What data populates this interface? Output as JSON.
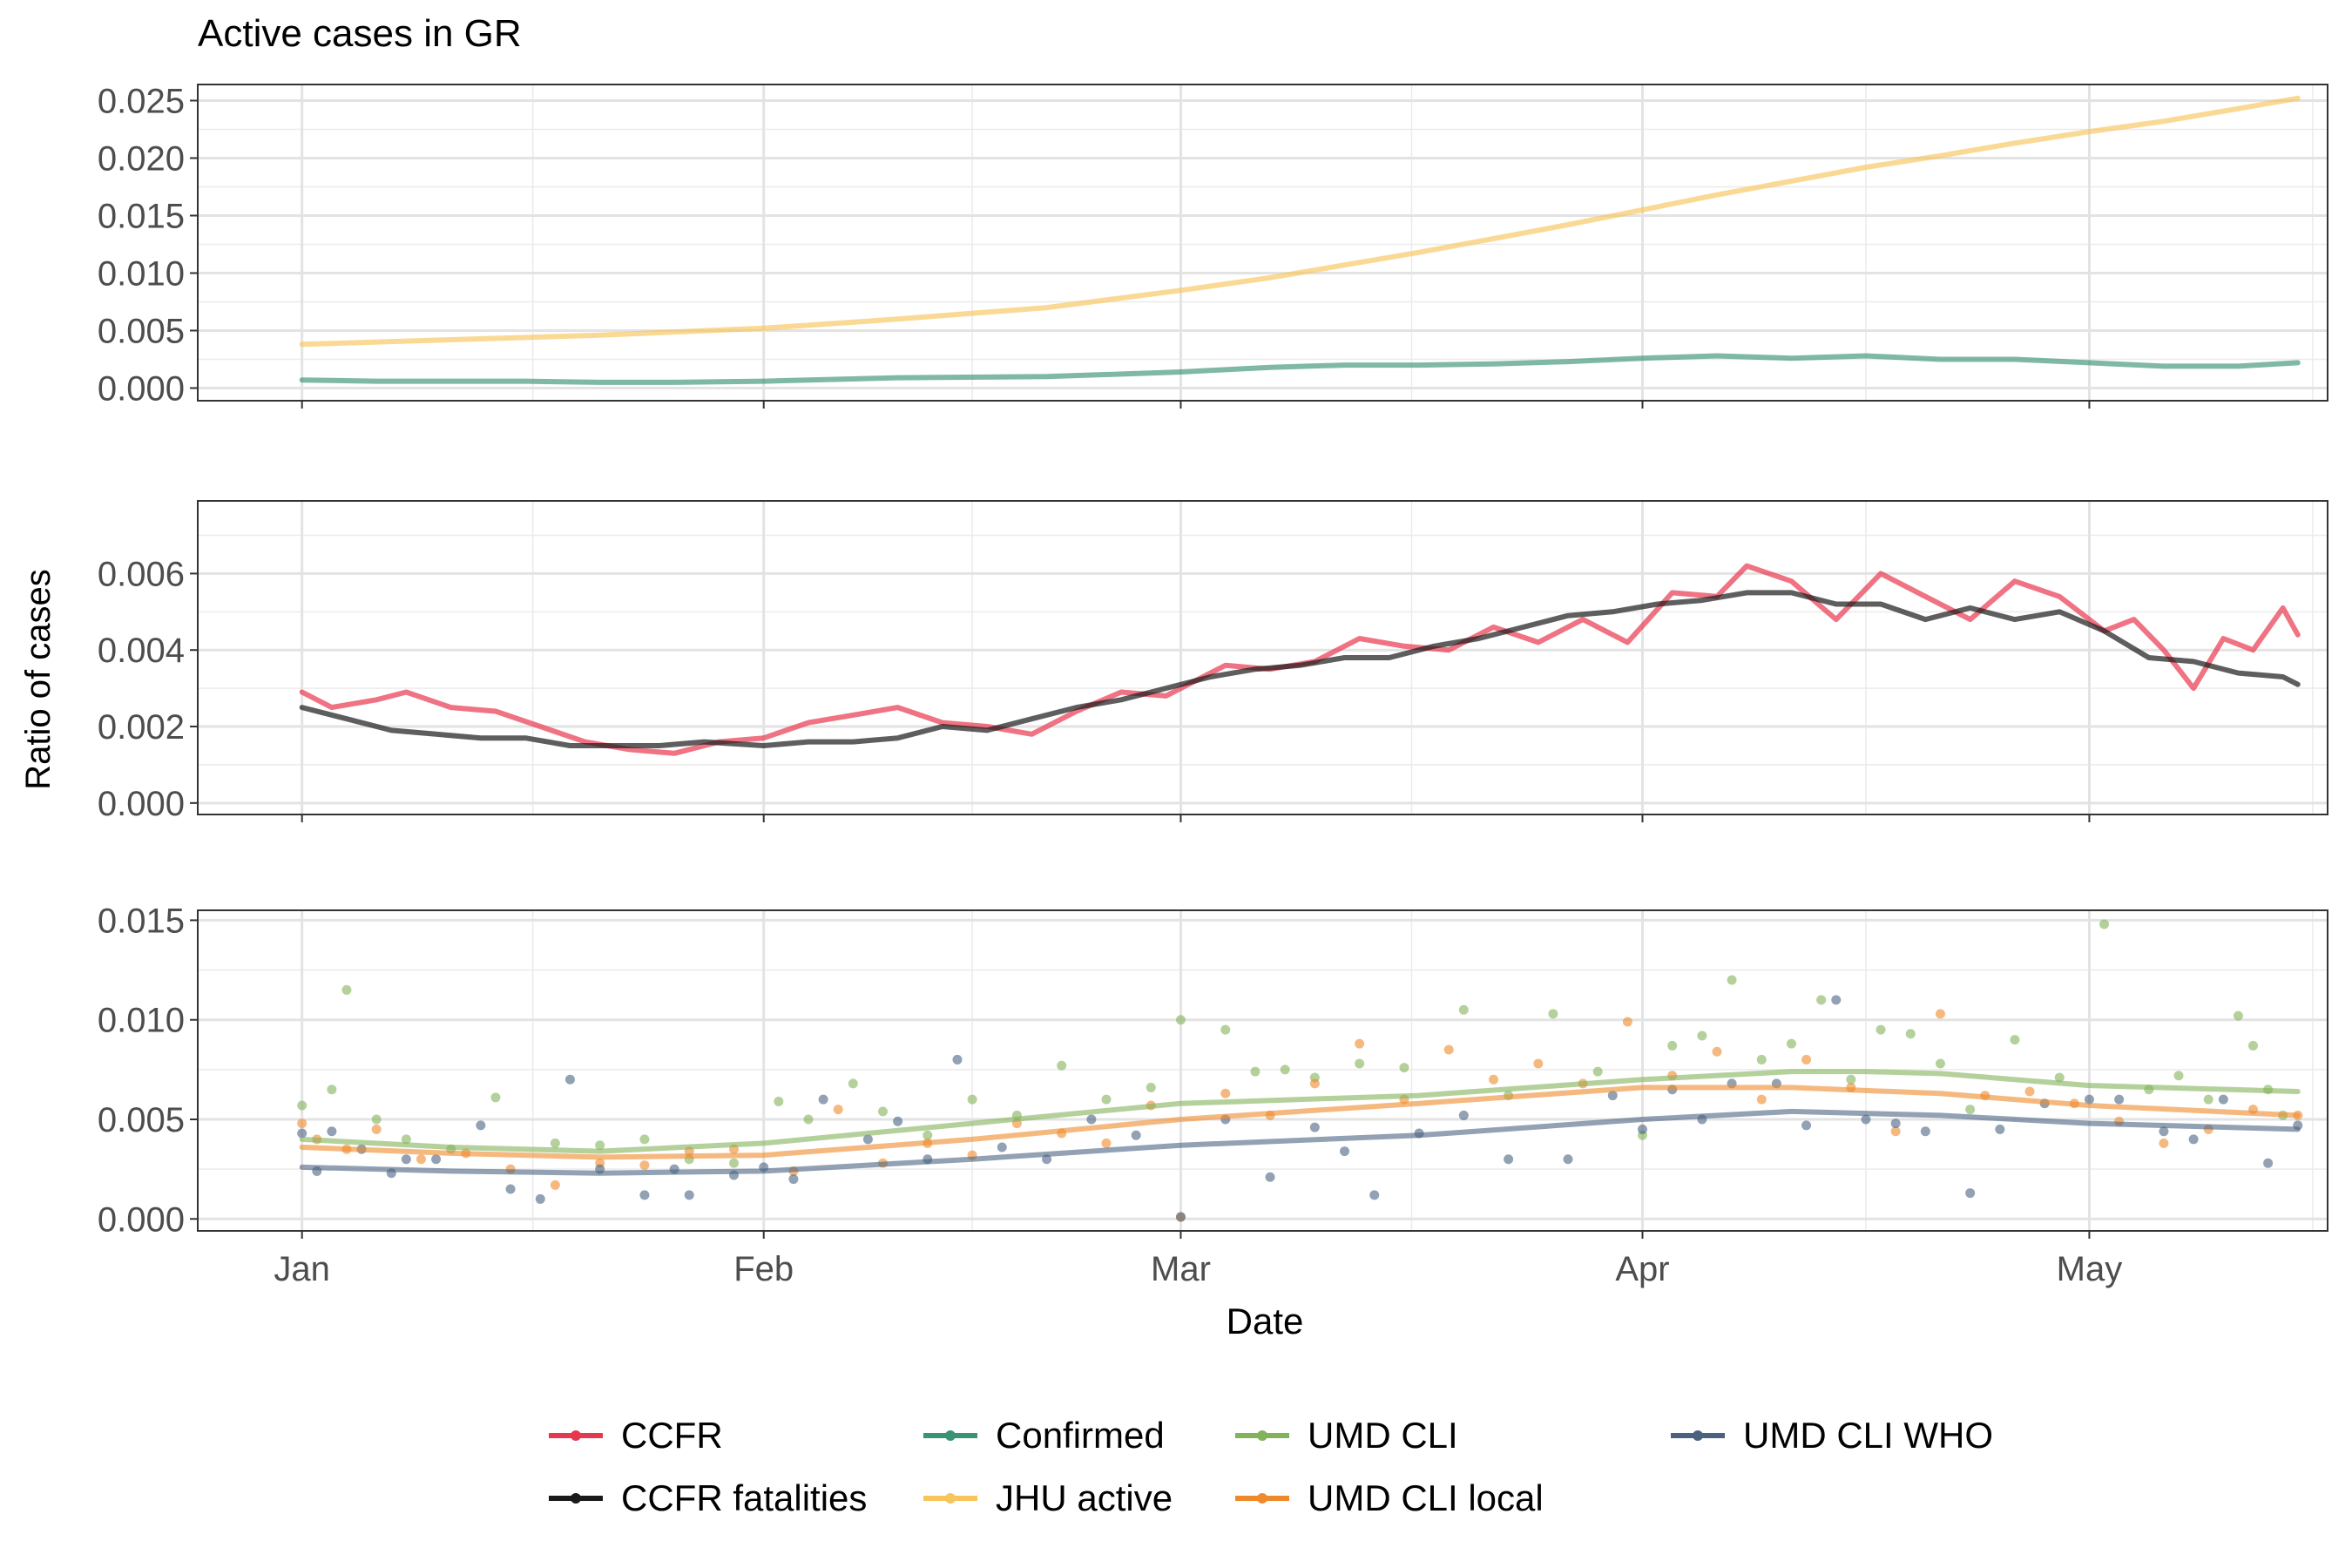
{
  "title": "Active cases in GR",
  "xlabel": "Date",
  "ylabel": "Ratio of cases",
  "colors": {
    "CCFR": "#e8384f",
    "CCFR fatalities": "#1a1a1a",
    "Confirmed": "#3a9277",
    "JHU active": "#f8c45c",
    "UMD CLI": "#82b35a",
    "UMD CLI local": "#ef8a2c",
    "UMD CLI WHO": "#4a6280"
  },
  "legend": {
    "position": "bottom",
    "items": [
      "CCFR",
      "Confirmed",
      "UMD CLI",
      "UMD CLI WHO",
      "CCFR fatalities",
      "JHU active",
      "UMD CLI local"
    ]
  },
  "chart_data": [
    {
      "type": "line",
      "panel": "top",
      "x_ticks": [
        "Jan",
        "Feb",
        "Mar",
        "Apr",
        "May"
      ],
      "x_tick_days": [
        0,
        31,
        59,
        90,
        120
      ],
      "xlim": [
        -7,
        136
      ],
      "ylim": [
        -0.0011,
        0.0264
      ],
      "y_ticks": [
        "0.000",
        "0.005",
        "0.010",
        "0.015",
        "0.020",
        "0.025"
      ],
      "y_tick_values": [
        0,
        0.005,
        0.01,
        0.015,
        0.02,
        0.025
      ],
      "series": [
        {
          "name": "JHU active",
          "x": [
            0,
            10,
            20,
            31,
            40,
            50,
            59,
            65,
            70,
            75,
            80,
            85,
            90,
            95,
            100,
            105,
            110,
            115,
            120,
            125,
            130,
            134
          ],
          "y": [
            0.0038,
            0.0042,
            0.0046,
            0.0052,
            0.006,
            0.007,
            0.0085,
            0.0096,
            0.0107,
            0.0118,
            0.013,
            0.0142,
            0.0155,
            0.0168,
            0.018,
            0.0192,
            0.0202,
            0.0213,
            0.0223,
            0.0232,
            0.0243,
            0.0252
          ]
        },
        {
          "name": "Confirmed",
          "x": [
            0,
            5,
            10,
            15,
            20,
            25,
            31,
            40,
            50,
            59,
            65,
            70,
            75,
            80,
            85,
            90,
            95,
            100,
            105,
            110,
            115,
            120,
            125,
            130,
            134
          ],
          "y": [
            0.0007,
            0.0006,
            0.0006,
            0.0006,
            0.0005,
            0.0005,
            0.0006,
            0.0009,
            0.001,
            0.0014,
            0.0018,
            0.002,
            0.002,
            0.0021,
            0.0023,
            0.0026,
            0.0028,
            0.0026,
            0.0028,
            0.0025,
            0.0025,
            0.0022,
            0.0019,
            0.0019,
            0.0022
          ]
        }
      ]
    },
    {
      "type": "line",
      "panel": "middle",
      "xlim": [
        -7,
        136
      ],
      "ylim": [
        -0.0003,
        0.0079
      ],
      "y_ticks": [
        "0.000",
        "0.002",
        "0.004",
        "0.006"
      ],
      "y_tick_values": [
        0,
        0.002,
        0.004,
        0.006
      ],
      "series": [
        {
          "name": "CCFR",
          "x": [
            0,
            2,
            5,
            7,
            10,
            13,
            16,
            19,
            22,
            25,
            28,
            31,
            34,
            37,
            40,
            43,
            46,
            49,
            52,
            55,
            58,
            60,
            62,
            65,
            68,
            71,
            74,
            77,
            80,
            83,
            86,
            89,
            92,
            95,
            97,
            100,
            103,
            106,
            109,
            112,
            115,
            118,
            121,
            123,
            125,
            127,
            129,
            131,
            133,
            134
          ],
          "y": [
            0.0029,
            0.0025,
            0.0027,
            0.0029,
            0.0025,
            0.0024,
            0.002,
            0.0016,
            0.0014,
            0.0013,
            0.0016,
            0.0017,
            0.0021,
            0.0023,
            0.0025,
            0.0021,
            0.002,
            0.0018,
            0.0024,
            0.0029,
            0.0028,
            0.0032,
            0.0036,
            0.0035,
            0.0037,
            0.0043,
            0.0041,
            0.004,
            0.0046,
            0.0042,
            0.0048,
            0.0042,
            0.0055,
            0.0054,
            0.0062,
            0.0058,
            0.0048,
            0.006,
            0.0054,
            0.0048,
            0.0058,
            0.0054,
            0.0045,
            0.0048,
            0.004,
            0.003,
            0.0043,
            0.004,
            0.0051,
            0.0044
          ]
        },
        {
          "name": "CCFR fatalities",
          "x": [
            0,
            3,
            6,
            9,
            12,
            15,
            18,
            21,
            24,
            27,
            31,
            34,
            37,
            40,
            43,
            46,
            49,
            52,
            55,
            58,
            61,
            64,
            67,
            70,
            73,
            76,
            79,
            82,
            85,
            88,
            91,
            94,
            97,
            100,
            103,
            106,
            109,
            112,
            115,
            118,
            121,
            124,
            127,
            130,
            133,
            134
          ],
          "y": [
            0.0025,
            0.0022,
            0.0019,
            0.0018,
            0.0017,
            0.0017,
            0.0015,
            0.0015,
            0.0015,
            0.0016,
            0.0015,
            0.0016,
            0.0016,
            0.0017,
            0.002,
            0.0019,
            0.0022,
            0.0025,
            0.0027,
            0.003,
            0.0033,
            0.0035,
            0.0036,
            0.0038,
            0.0038,
            0.0041,
            0.0043,
            0.0046,
            0.0049,
            0.005,
            0.0052,
            0.0053,
            0.0055,
            0.0055,
            0.0052,
            0.0052,
            0.0048,
            0.0051,
            0.0048,
            0.005,
            0.0045,
            0.0038,
            0.0037,
            0.0034,
            0.0033,
            0.0031
          ]
        }
      ]
    },
    {
      "type": "scatter",
      "panel": "bottom",
      "xlim": [
        -7,
        136
      ],
      "ylim": [
        -0.0006,
        0.0155
      ],
      "y_ticks": [
        "0.000",
        "0.005",
        "0.010",
        "0.015"
      ],
      "y_tick_values": [
        0,
        0.005,
        0.01,
        0.015
      ],
      "smooth": [
        {
          "name": "UMD CLI",
          "x": [
            0,
            10,
            20,
            31,
            45,
            59,
            75,
            90,
            100,
            105,
            110,
            120,
            134
          ],
          "y": [
            0.004,
            0.0036,
            0.0034,
            0.0038,
            0.0048,
            0.0058,
            0.0062,
            0.007,
            0.0074,
            0.0074,
            0.0073,
            0.0067,
            0.0064
          ]
        },
        {
          "name": "UMD CLI local",
          "x": [
            0,
            10,
            20,
            31,
            45,
            59,
            75,
            90,
            100,
            110,
            120,
            134
          ],
          "y": [
            0.0036,
            0.0033,
            0.0031,
            0.0032,
            0.004,
            0.005,
            0.0058,
            0.0066,
            0.0066,
            0.0063,
            0.0057,
            0.0052
          ]
        },
        {
          "name": "UMD CLI WHO",
          "x": [
            0,
            10,
            20,
            31,
            45,
            59,
            75,
            90,
            100,
            110,
            120,
            134
          ],
          "y": [
            0.0026,
            0.0024,
            0.0023,
            0.0024,
            0.003,
            0.0037,
            0.0042,
            0.005,
            0.0054,
            0.0052,
            0.0048,
            0.0045
          ]
        }
      ],
      "points": [
        {
          "name": "UMD CLI",
          "x": [
            0,
            2,
            3,
            5,
            7,
            10,
            13,
            17,
            20,
            23,
            26,
            29,
            32,
            34,
            37,
            39,
            42,
            45,
            48,
            51,
            54,
            57,
            59,
            62,
            64,
            66,
            68,
            71,
            74,
            78,
            81,
            84,
            87,
            90,
            92,
            94,
            96,
            98,
            100,
            102,
            104,
            106,
            108,
            110,
            112,
            115,
            118,
            121,
            124,
            126,
            128,
            130,
            131,
            132,
            133
          ],
          "y": [
            0.0057,
            0.0065,
            0.0115,
            0.005,
            0.004,
            0.0035,
            0.0061,
            0.0038,
            0.0037,
            0.004,
            0.003,
            0.0028,
            0.0059,
            0.005,
            0.0068,
            0.0054,
            0.0042,
            0.006,
            0.0052,
            0.0077,
            0.006,
            0.0066,
            0.01,
            0.0095,
            0.0074,
            0.0075,
            0.0071,
            0.0078,
            0.0076,
            0.0105,
            0.0062,
            0.0103,
            0.0074,
            0.0042,
            0.0087,
            0.0092,
            0.012,
            0.008,
            0.0088,
            0.011,
            0.007,
            0.0095,
            0.0093,
            0.0078,
            0.0055,
            0.009,
            0.0071,
            0.0148,
            0.0065,
            0.0072,
            0.006,
            0.0102,
            0.0087,
            0.0065,
            0.0052
          ]
        },
        {
          "name": "UMD CLI local",
          "x": [
            0,
            1,
            3,
            5,
            8,
            11,
            14,
            17,
            20,
            23,
            26,
            29,
            33,
            36,
            39,
            42,
            45,
            48,
            51,
            54,
            57,
            59,
            62,
            65,
            68,
            71,
            74,
            77,
            80,
            83,
            86,
            89,
            92,
            95,
            98,
            101,
            104,
            107,
            110,
            113,
            116,
            119,
            122,
            125,
            128,
            131,
            134
          ],
          "y": [
            0.0048,
            0.004,
            0.0035,
            0.0045,
            0.003,
            0.0033,
            0.0025,
            0.0017,
            0.0028,
            0.0027,
            0.0034,
            0.0035,
            0.0024,
            0.0055,
            0.0028,
            0.0038,
            0.0032,
            0.0048,
            0.0043,
            0.0038,
            0.0057,
            0.0001,
            0.0063,
            0.0052,
            0.0068,
            0.0088,
            0.006,
            0.0085,
            0.007,
            0.0078,
            0.0068,
            0.0099,
            0.0072,
            0.0084,
            0.006,
            0.008,
            0.0066,
            0.0044,
            0.0103,
            0.0062,
            0.0064,
            0.0058,
            0.0049,
            0.0038,
            0.0045,
            0.0055,
            0.0052
          ]
        },
        {
          "name": "UMD CLI WHO",
          "x": [
            0,
            1,
            2,
            4,
            6,
            7,
            9,
            12,
            14,
            16,
            18,
            20,
            23,
            25,
            26,
            29,
            31,
            33,
            35,
            38,
            40,
            42,
            44,
            47,
            50,
            53,
            56,
            59,
            62,
            65,
            68,
            70,
            72,
            75,
            78,
            81,
            85,
            88,
            90,
            92,
            94,
            96,
            99,
            101,
            103,
            105,
            107,
            109,
            112,
            114,
            117,
            120,
            122,
            125,
            127,
            129,
            132,
            134
          ],
          "y": [
            0.0043,
            0.0024,
            0.0044,
            0.0035,
            0.0023,
            0.003,
            0.003,
            0.0047,
            0.0015,
            0.001,
            0.007,
            0.0025,
            0.0012,
            0.0025,
            0.0012,
            0.0022,
            0.0026,
            0.002,
            0.006,
            0.004,
            0.0049,
            0.003,
            0.008,
            0.0036,
            0.003,
            0.005,
            0.0042,
            0.0001,
            0.005,
            0.0021,
            0.0046,
            0.0034,
            0.0012,
            0.0043,
            0.0052,
            0.003,
            0.003,
            0.0062,
            0.0045,
            0.0065,
            0.005,
            0.0068,
            0.0068,
            0.0047,
            0.011,
            0.005,
            0.0048,
            0.0044,
            0.0013,
            0.0045,
            0.0058,
            0.006,
            0.006,
            0.0044,
            0.004,
            0.006,
            0.0028,
            0.0047
          ]
        }
      ]
    }
  ]
}
